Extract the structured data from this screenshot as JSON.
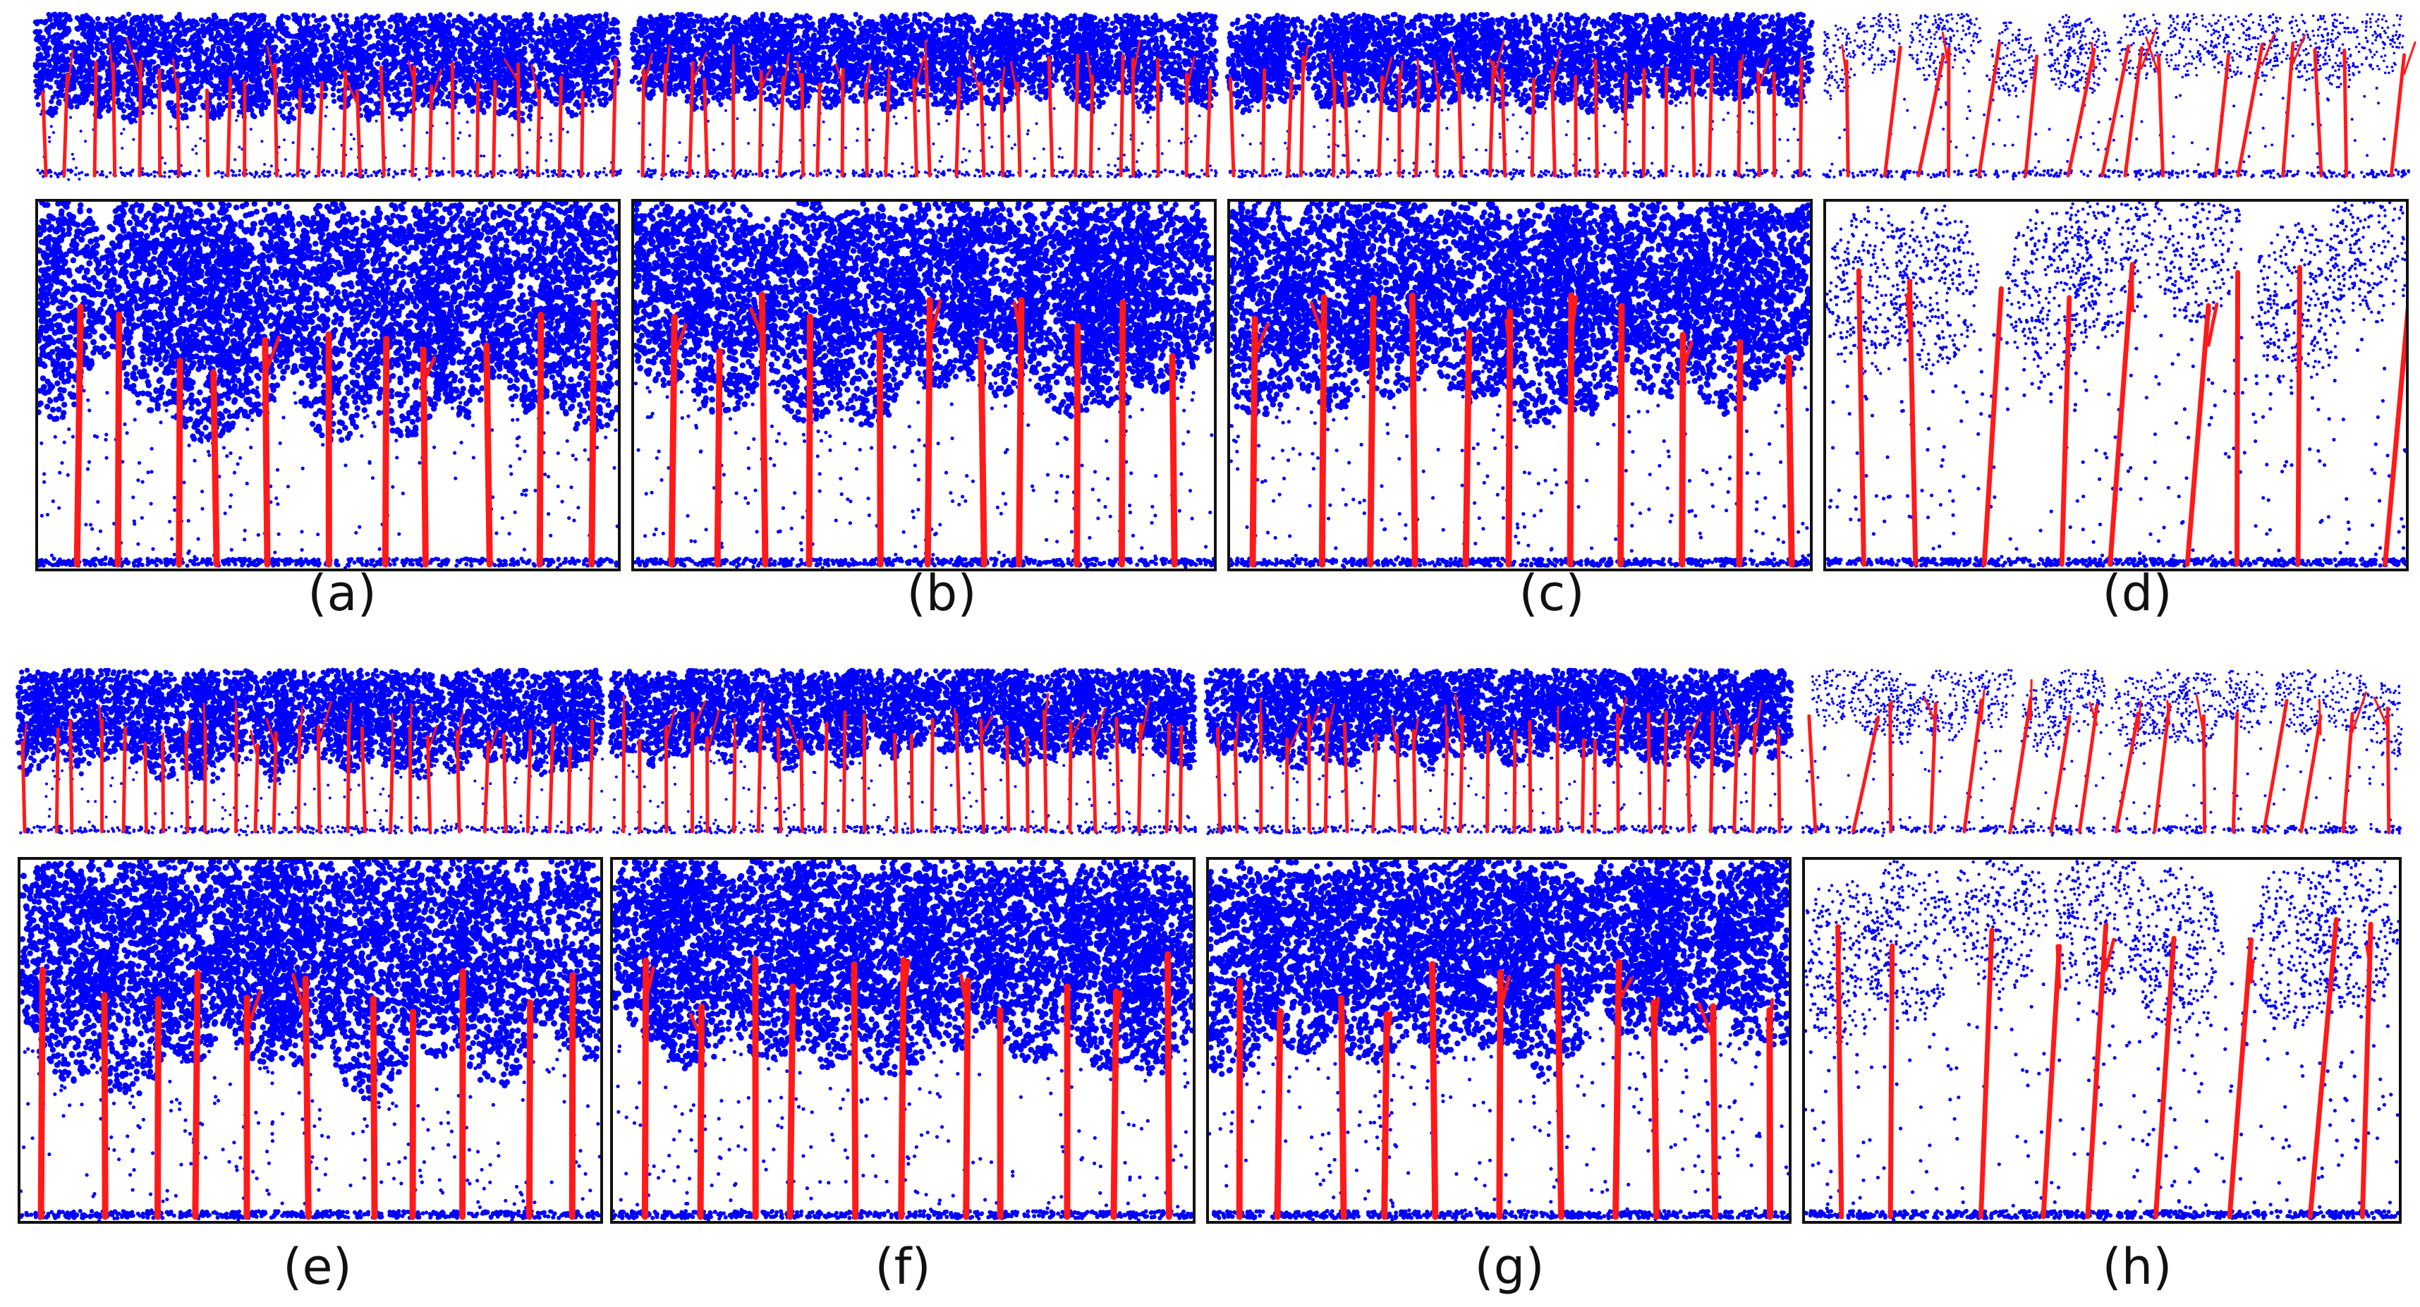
{
  "figure": {
    "colors": {
      "canopy": "#0000ff",
      "stem": "#ff1a1a",
      "frame": "#111111"
    },
    "rows": [
      {
        "panels": [
          {
            "id": "a",
            "label": "(a)",
            "kind": "plantation",
            "seed": 11
          },
          {
            "id": "b",
            "label": "(b)",
            "kind": "dense",
            "seed": 23
          },
          {
            "id": "c",
            "label": "(c)",
            "kind": "dense",
            "seed": 37
          },
          {
            "id": "d",
            "label": "(d)",
            "kind": "sparse",
            "seed": 41
          }
        ]
      },
      {
        "panels": [
          {
            "id": "e",
            "label": "(e)",
            "kind": "plantation",
            "seed": 53
          },
          {
            "id": "f",
            "label": "(f)",
            "kind": "dense",
            "seed": 67
          },
          {
            "id": "g",
            "label": "(g)",
            "kind": "dense",
            "seed": 79
          },
          {
            "id": "h",
            "label": "(h)",
            "kind": "sparse",
            "seed": 83
          }
        ]
      }
    ]
  }
}
